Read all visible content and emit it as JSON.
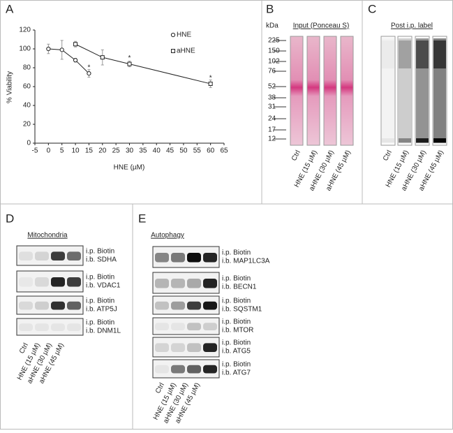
{
  "chart_data": {
    "type": "line",
    "panel_label": "A",
    "x_label": "HNE (µM)",
    "y_label": "% Viability",
    "xlim": [
      -5,
      65
    ],
    "xticks": [
      -5,
      0,
      5,
      10,
      15,
      20,
      25,
      30,
      35,
      40,
      45,
      50,
      55,
      60,
      65
    ],
    "ylim": [
      0,
      120
    ],
    "yticks": [
      0,
      20,
      40,
      60,
      80,
      100,
      120
    ],
    "legend": "top-right",
    "series": [
      {
        "name": "HNE",
        "color": "#222222",
        "marker": "circle",
        "x": [
          0,
          5,
          10,
          15
        ],
        "values": [
          100,
          99,
          88,
          74
        ],
        "errors": [
          5,
          10,
          2,
          4
        ]
      },
      {
        "name": "aHNE",
        "color": "#222222",
        "marker": "square",
        "x": [
          10,
          20,
          30,
          60
        ],
        "values": [
          105,
          91,
          84,
          63
        ],
        "errors": [
          3,
          8,
          3,
          4
        ]
      }
    ],
    "annotations": [
      {
        "text": "*",
        "x": 15,
        "y": 80
      },
      {
        "text": "*",
        "x": 30,
        "y": 90
      },
      {
        "text": "*",
        "x": 60,
        "y": 69
      }
    ]
  },
  "panel_b": {
    "label": "B",
    "unit": "kDa",
    "title": "Input (Ponceau S)",
    "markers": [
      225,
      150,
      102,
      76,
      52,
      38,
      31,
      24,
      17,
      12
    ],
    "lanes": [
      "Ctrl",
      "HNE (15 µM)",
      "aHNE (30 µM)",
      "aHNE (45 µM)"
    ]
  },
  "panel_c": {
    "label": "C",
    "title": "Post i.p. label",
    "lanes": [
      "Ctrl",
      "HNE (15 µM)",
      "aHNE (30 µM)",
      "aHNE (45 µM)"
    ]
  },
  "panel_d": {
    "label": "D",
    "title": "Mitochondria",
    "rows": [
      {
        "ip": "i.p. Biotin",
        "ib": "i.b. SDHA"
      },
      {
        "ip": "i.p. Biotin",
        "ib": "i.b. VDAC1"
      },
      {
        "ip": "i.p. Biotin",
        "ib": "i.b. ATP5J"
      },
      {
        "ip": "i.p. Biotin",
        "ib": "i.b. DNM1L"
      }
    ],
    "lanes": [
      "Ctrl",
      "HNE (15 µM)",
      "aHNE (30 µM)",
      "aHNE (45 µM)"
    ]
  },
  "panel_e": {
    "label": "E",
    "title": "Autophagy",
    "rows": [
      {
        "ip": "i.p. Biotin",
        "ib": "i.b. MAP1LC3A"
      },
      {
        "ip": "i.p. Biotin",
        "ib": "i.b. BECN1"
      },
      {
        "ip": "i.p. Biotin",
        "ib": "i.b. SQSTM1"
      },
      {
        "ip": "i.p. Biotin",
        "ib": "i.b. MTOR"
      },
      {
        "ip": "i.p. Biotin",
        "ib": "i.b. ATG5"
      },
      {
        "ip": "i.p. Biotin",
        "ib": "i.b. ATG7"
      }
    ],
    "lanes": [
      "Ctrl",
      "HNE (15 µM)",
      "aHNE (30 µM)",
      "aHNE (45 µM)"
    ]
  }
}
